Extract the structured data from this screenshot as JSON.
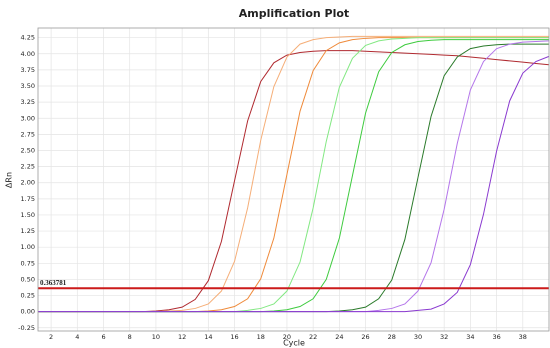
{
  "chart_data": {
    "type": "line",
    "title": "Amplification Plot",
    "x_label": "Cycle",
    "y_label": "ΔRn",
    "x": [
      1,
      2,
      3,
      4,
      5,
      6,
      7,
      8,
      9,
      10,
      11,
      12,
      13,
      14,
      15,
      16,
      17,
      18,
      19,
      20,
      21,
      22,
      23,
      24,
      25,
      26,
      27,
      28,
      29,
      30,
      31,
      32,
      33,
      34,
      35,
      36,
      37,
      38,
      39,
      40
    ],
    "series": [
      {
        "color": "#b02a30",
        "values": [
          0,
          0,
          0,
          0,
          0,
          0,
          0,
          0,
          0,
          0.01,
          0.03,
          0.07,
          0.19,
          0.48,
          1.09,
          2.03,
          2.96,
          3.57,
          3.86,
          3.98,
          4.02,
          4.04,
          4.05,
          4.05,
          4.05,
          4.04,
          4.03,
          4.02,
          4.01,
          4.0,
          3.99,
          3.98,
          3.97,
          3.95,
          3.93,
          3.91,
          3.89,
          3.87,
          3.85,
          3.83
        ]
      },
      {
        "color": "#f5ae78",
        "values": [
          0,
          0,
          0,
          0,
          0,
          0,
          0,
          0,
          0,
          0,
          0.01,
          0.02,
          0.05,
          0.12,
          0.32,
          0.78,
          1.61,
          2.66,
          3.49,
          3.95,
          4.15,
          4.22,
          4.25,
          4.26,
          4.27,
          4.27,
          4.27,
          4.27,
          4.27,
          4.27,
          4.27,
          4.27,
          4.27,
          4.27,
          4.27,
          4.27,
          4.27,
          4.27,
          4.27,
          4.27
        ]
      },
      {
        "color": "#ef8a3a",
        "values": [
          0,
          0,
          0,
          0,
          0,
          0,
          0,
          0,
          0,
          0,
          0,
          0,
          0,
          0.01,
          0.03,
          0.08,
          0.2,
          0.51,
          1.14,
          2.13,
          3.11,
          3.74,
          4.05,
          4.17,
          4.22,
          4.24,
          4.25,
          4.25,
          4.25,
          4.25,
          4.25,
          4.25,
          4.25,
          4.25,
          4.25,
          4.25,
          4.25,
          4.25,
          4.25,
          4.25
        ]
      },
      {
        "color": "#82e882",
        "values": [
          0,
          0,
          0,
          0,
          0,
          0,
          0,
          0,
          0,
          0,
          0,
          0,
          0,
          0,
          0,
          0,
          0.02,
          0.05,
          0.12,
          0.32,
          0.77,
          1.61,
          2.64,
          3.48,
          3.93,
          4.13,
          4.2,
          4.23,
          4.24,
          4.25,
          4.25,
          4.25,
          4.25,
          4.25,
          4.25,
          4.25,
          4.25,
          4.25,
          4.25,
          4.25
        ]
      },
      {
        "color": "#3ecb3e",
        "values": [
          0,
          0,
          0,
          0,
          0,
          0,
          0,
          0,
          0,
          0,
          0,
          0,
          0,
          0,
          0,
          0,
          0,
          0,
          0.01,
          0.03,
          0.08,
          0.2,
          0.5,
          1.14,
          2.11,
          3.08,
          3.72,
          4.02,
          4.14,
          4.19,
          4.21,
          4.22,
          4.22,
          4.22,
          4.22,
          4.22,
          4.22,
          4.22,
          4.22,
          4.22
        ]
      },
      {
        "color": "#2a7a2a",
        "values": [
          0,
          0,
          0,
          0,
          0,
          0,
          0,
          0,
          0,
          0,
          0,
          0,
          0,
          0,
          0,
          0,
          0,
          0,
          0,
          0,
          0,
          0,
          0,
          0.01,
          0.03,
          0.07,
          0.2,
          0.49,
          1.12,
          2.08,
          3.03,
          3.66,
          3.95,
          4.08,
          4.12,
          4.14,
          4.15,
          4.15,
          4.15,
          4.15
        ]
      },
      {
        "color": "#b476ea",
        "values": [
          0,
          0,
          0,
          0,
          0,
          0,
          0,
          0,
          0,
          0,
          0,
          0,
          0,
          0,
          0,
          0,
          0,
          0,
          0,
          0,
          0,
          0,
          0,
          0,
          0,
          0,
          0.02,
          0.05,
          0.12,
          0.32,
          0.76,
          1.59,
          2.61,
          3.44,
          3.88,
          4.08,
          4.15,
          4.18,
          4.19,
          4.2
        ]
      },
      {
        "color": "#8a3ad0",
        "values": [
          0,
          0,
          0,
          0,
          0,
          0,
          0,
          0,
          0,
          0,
          0,
          0,
          0,
          0,
          0,
          0,
          0,
          0,
          0,
          0,
          0,
          0,
          0,
          0,
          0,
          0,
          0,
          0,
          0,
          0.02,
          0.04,
          0.12,
          0.3,
          0.73,
          1.51,
          2.49,
          3.27,
          3.7,
          3.88,
          3.96
        ]
      }
    ],
    "threshold": 0.363781,
    "threshold_color": "#cc1a1a",
    "xlim": [
      1,
      40
    ],
    "xticks": [
      2,
      4,
      6,
      8,
      10,
      12,
      14,
      16,
      18,
      20,
      22,
      24,
      26,
      28,
      30,
      32,
      34,
      36,
      38
    ],
    "ylim": [
      -0.3,
      4.4
    ],
    "yticks": [
      {
        "value": -0.25,
        "label": "-0.25"
      },
      {
        "value": 0,
        "label": "0.00"
      },
      {
        "value": 0.25,
        "label": "0.25"
      },
      {
        "value": 0.5,
        "label": "0.50"
      },
      {
        "value": 0.75,
        "label": "0.75"
      },
      {
        "value": 1,
        "label": "1.00"
      },
      {
        "value": 1.25,
        "label": "1.25"
      },
      {
        "value": 1.5,
        "label": "1.50"
      },
      {
        "value": 1.75,
        "label": "1.75"
      },
      {
        "value": 2,
        "label": "2.00"
      },
      {
        "value": 2.25,
        "label": "2.25"
      },
      {
        "value": 2.5,
        "label": "2.50"
      },
      {
        "value": 2.75,
        "label": "2.75"
      },
      {
        "value": 3,
        "label": "3.00"
      },
      {
        "value": 3.25,
        "label": "3.25"
      },
      {
        "value": 3.5,
        "label": "3.50"
      },
      {
        "value": 3.75,
        "label": "3.75"
      },
      {
        "value": 4,
        "label": "4.00"
      },
      {
        "value": 4.25,
        "label": "4.25"
      }
    ],
    "grid": true
  }
}
